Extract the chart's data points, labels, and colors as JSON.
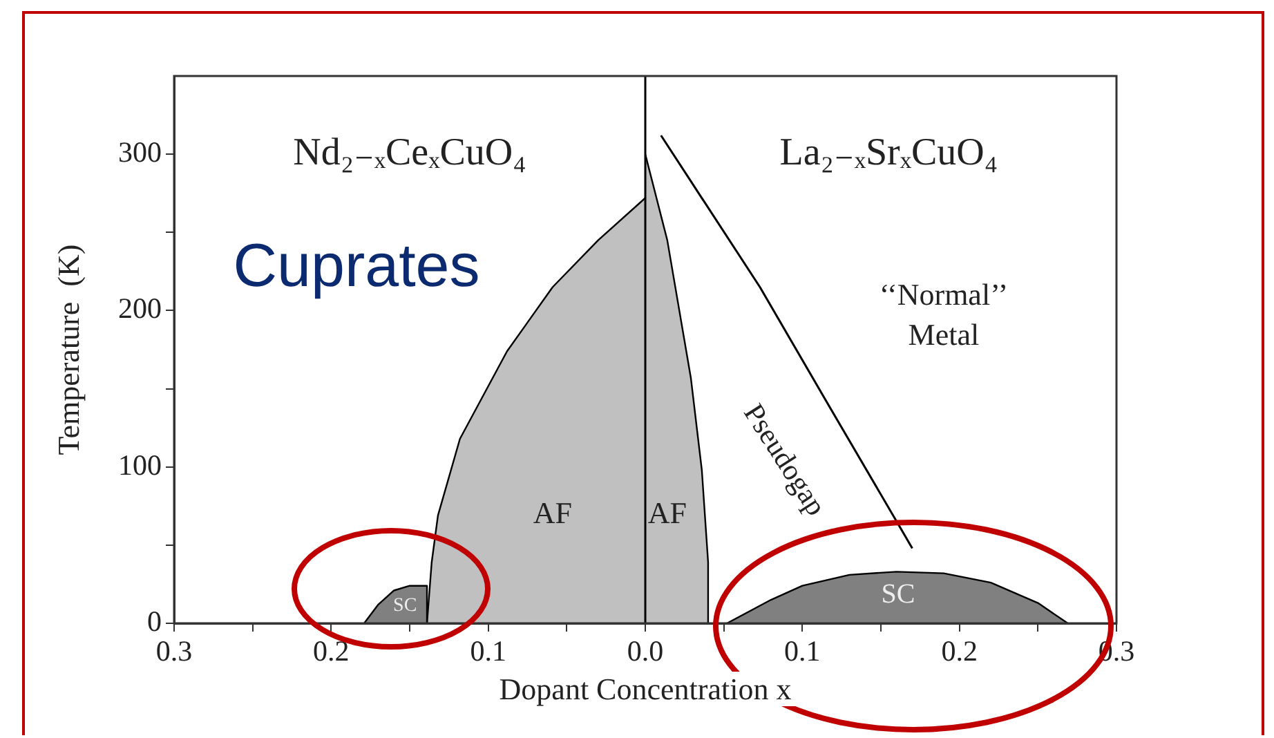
{
  "chart_data": {
    "type": "area",
    "title": "Cuprates",
    "xlabel": "Dopant Concentration x",
    "ylabel": "Temperature  (K)",
    "xlim": [
      -0.3,
      0.3
    ],
    "xticks": [
      {
        "value": -0.3,
        "label": "0.3"
      },
      {
        "value": -0.25,
        "label": null
      },
      {
        "value": -0.2,
        "label": "0.2"
      },
      {
        "value": -0.15,
        "label": null
      },
      {
        "value": -0.1,
        "label": "0.1"
      },
      {
        "value": -0.05,
        "label": null
      },
      {
        "value": 0,
        "label": "0.0"
      },
      {
        "value": 0.05,
        "label": null
      },
      {
        "value": 0.1,
        "label": "0.1"
      },
      {
        "value": 0.15,
        "label": null
      },
      {
        "value": 0.2,
        "label": "0.2"
      },
      {
        "value": 0.25,
        "label": null
      },
      {
        "value": 0.3,
        "label": "0.3"
      }
    ],
    "ylim": [
      0,
      350
    ],
    "yticks": [
      0,
      {
        "value": 50,
        "label": null
      },
      100,
      {
        "value": 150,
        "label": null
      },
      200,
      {
        "value": 250,
        "label": null
      },
      300
    ],
    "grid": false,
    "legend": false,
    "series": [
      {
        "type": "area",
        "color": "#c0c0c0",
        "x": [
          -0.139,
          -0.136,
          -0.132,
          -0.118,
          -0.088,
          -0.059,
          -0.03,
          0
        ],
        "values": [
          0,
          39,
          69,
          118,
          174,
          215,
          245,
          272
        ]
      },
      {
        "type": "area",
        "color": "#808080",
        "x": [
          -0.179,
          -0.17,
          -0.16,
          -0.15,
          -0.139,
          -0.139
        ],
        "values": [
          0,
          12,
          21,
          24,
          24,
          0
        ]
      },
      {
        "type": "area",
        "color": "#c0c0c0",
        "x": [
          0,
          0.014,
          0.029,
          0.036,
          0.04,
          0.04
        ],
        "values": [
          300,
          245,
          157,
          98,
          39,
          0
        ]
      },
      {
        "type": "area",
        "color": "#808080",
        "x": [
          0.052,
          0.08,
          0.1,
          0.13,
          0.16,
          0.19,
          0.22,
          0.25,
          0.269
        ],
        "values": [
          0,
          15,
          24,
          31,
          33,
          32,
          26,
          13,
          0
        ]
      },
      {
        "type": "line",
        "color": "#000000",
        "x": [
          0.01,
          0.073,
          0.117,
          0.17
        ],
        "values": [
          312,
          215,
          139,
          48
        ]
      }
    ],
    "ref_lines": [
      {
        "axis": "x",
        "value": 0,
        "color": "#000000"
      }
    ],
    "annotations": [
      "Nd₂₋ₓCeₓCuO₄",
      "La₂₋ₓSrₓCuO₄",
      "AF",
      "AF",
      "SC",
      "SC",
      "‘‘Normal’’",
      "Metal",
      "Pseudogap"
    ]
  }
}
